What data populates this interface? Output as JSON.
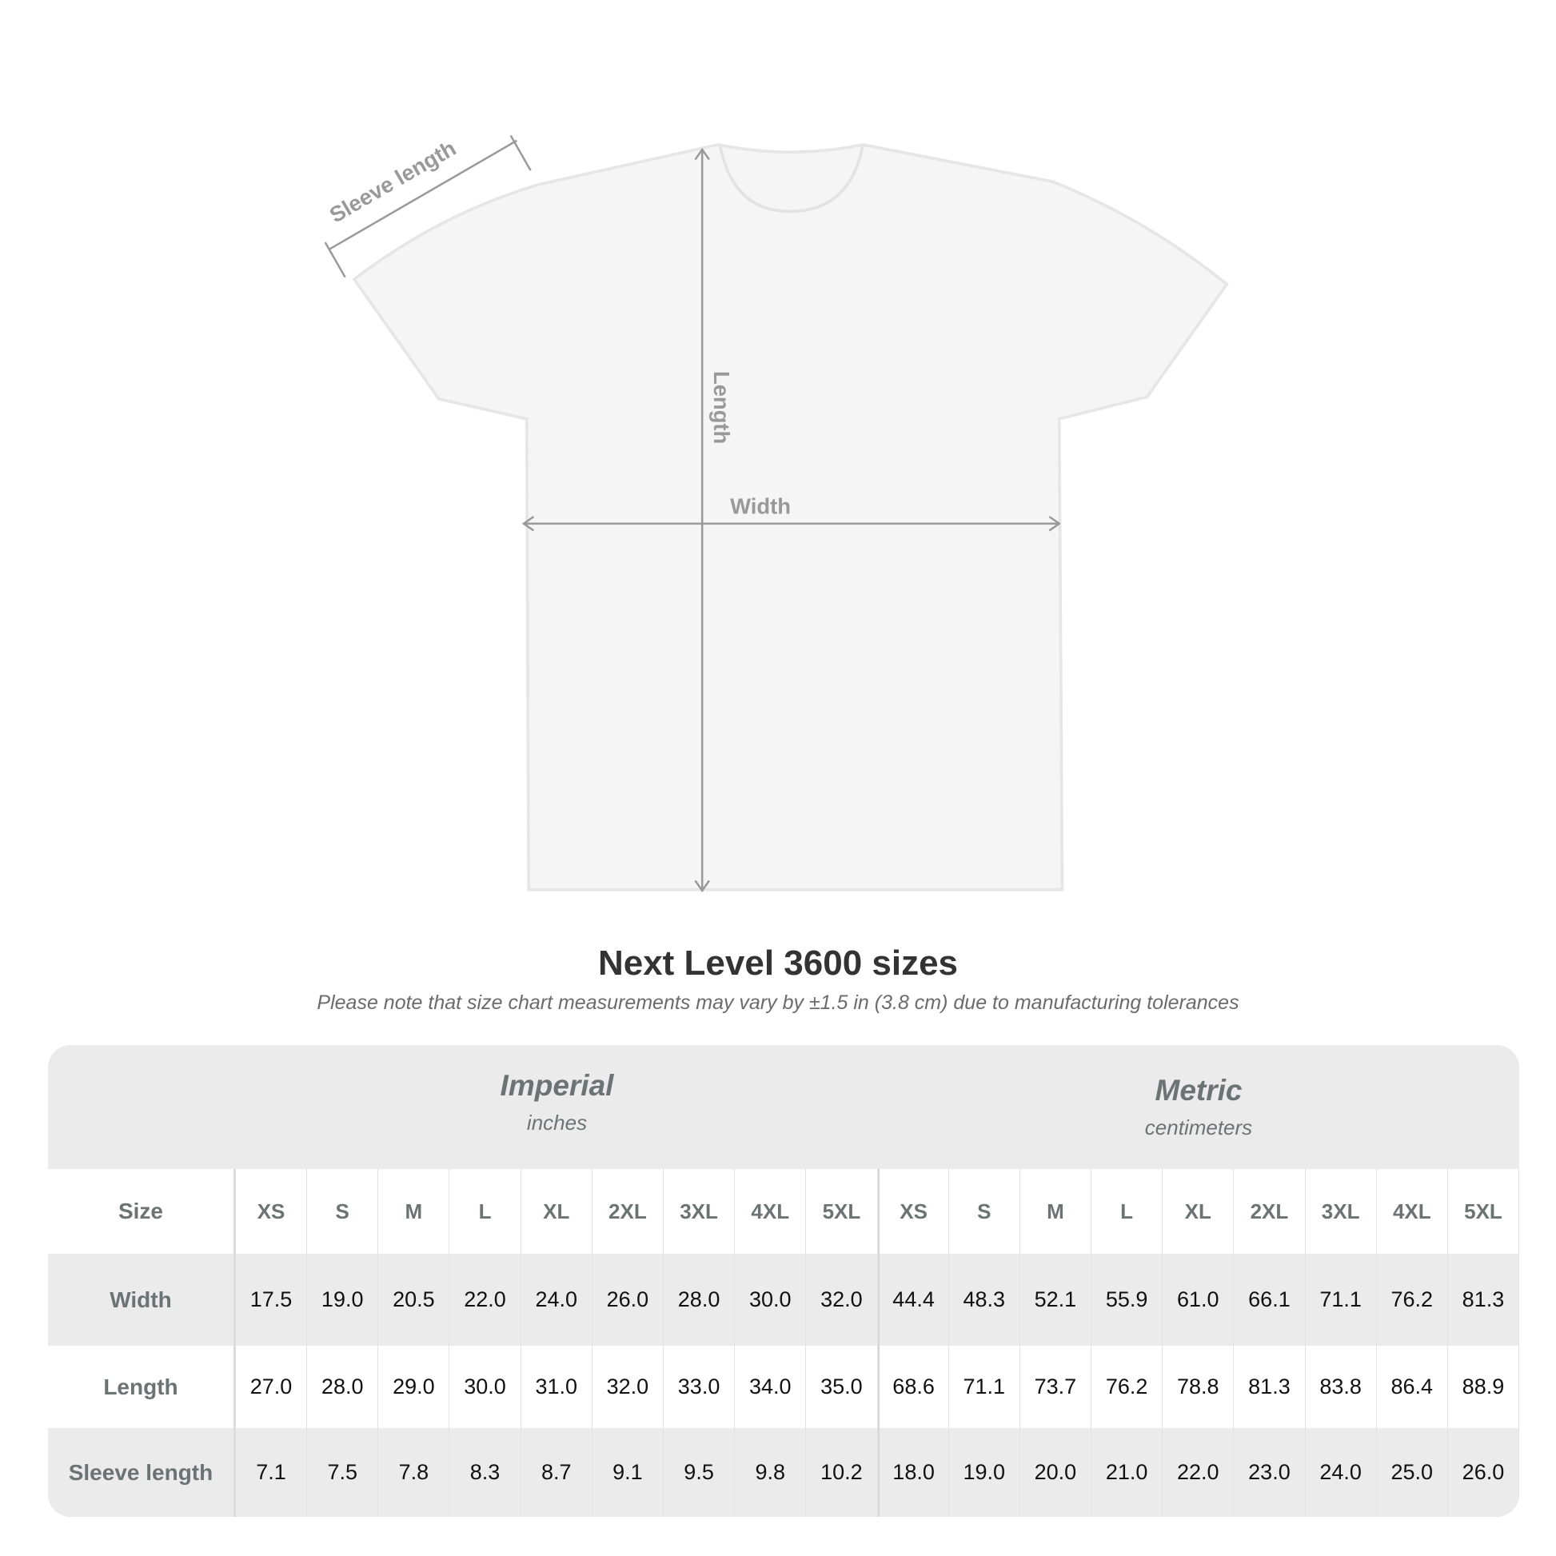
{
  "diagram": {
    "sleeve_label": "Sleeve length",
    "length_label": "Length",
    "width_label": "Width"
  },
  "title": "Next Level 3600 sizes",
  "note": "Please note that size chart measurements may vary by ±1.5 in (3.8 cm) due to manufacturing tolerances",
  "table": {
    "imperial": {
      "label": "Imperial",
      "unit": "inches"
    },
    "metric": {
      "label": "Metric",
      "unit": "centimeters"
    },
    "rows": [
      {
        "label": "Size",
        "values": [
          "XS",
          "S",
          "M",
          "L",
          "XL",
          "2XL",
          "3XL",
          "4XL",
          "5XL",
          "XS",
          "S",
          "M",
          "L",
          "XL",
          "2XL",
          "3XL",
          "4XL",
          "5XL"
        ]
      },
      {
        "label": "Width",
        "values": [
          "17.5",
          "19.0",
          "20.5",
          "22.0",
          "24.0",
          "26.0",
          "28.0",
          "30.0",
          "32.0",
          "44.4",
          "48.3",
          "52.1",
          "55.9",
          "61.0",
          "66.1",
          "71.1",
          "76.2",
          "81.3"
        ]
      },
      {
        "label": "Length",
        "values": [
          "27.0",
          "28.0",
          "29.0",
          "30.0",
          "31.0",
          "32.0",
          "33.0",
          "34.0",
          "35.0",
          "68.6",
          "71.1",
          "73.7",
          "76.2",
          "78.8",
          "81.3",
          "83.8",
          "86.4",
          "88.9"
        ]
      },
      {
        "label": "Sleeve length",
        "values": [
          "7.1",
          "7.5",
          "7.8",
          "8.3",
          "8.7",
          "9.1",
          "9.5",
          "9.8",
          "10.2",
          "18.0",
          "19.0",
          "20.0",
          "21.0",
          "22.0",
          "23.0",
          "24.0",
          "25.0",
          "26.0"
        ]
      }
    ]
  },
  "colors": {
    "header_text": "#6c7373",
    "band": "#ebebeb",
    "measure_line": "#999999"
  }
}
